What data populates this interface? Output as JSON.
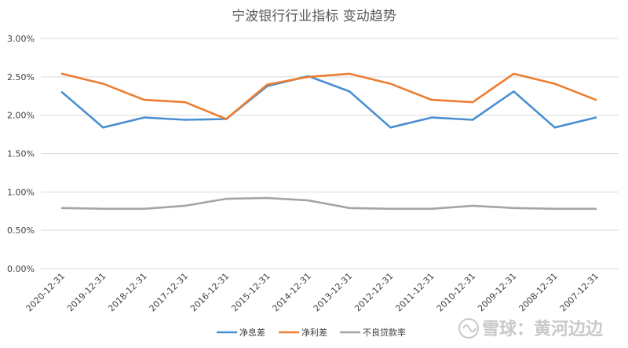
{
  "chart_data": {
    "type": "line",
    "title": "宁波银行行业指标 变动趋势",
    "xlabel": "",
    "ylabel": "",
    "categories": [
      "2020-12-31",
      "2019-12-31",
      "2018-12-31",
      "2017-12-31",
      "2016-12-31",
      "2015-12-31",
      "2014-12-31",
      "2013-12-31",
      "2012-12-31",
      "2011-12-31",
      "2010-12-31",
      "2009-12-31",
      "2008-12-31",
      "2007-12-31"
    ],
    "ylim": [
      0,
      3.0
    ],
    "yticks": [
      "0.00%",
      "0.50%",
      "1.00%",
      "1.50%",
      "2.00%",
      "2.50%",
      "3.00%"
    ],
    "grid": true,
    "legend_position": "bottom",
    "series": [
      {
        "name": "净息差",
        "color": "#4a8fd1",
        "values": [
          2.3,
          1.84,
          1.97,
          1.94,
          1.95,
          2.38,
          2.51,
          2.31,
          1.84,
          1.97,
          1.94,
          2.31,
          1.84,
          1.97
        ]
      },
      {
        "name": "净利差",
        "color": "#ed7d31",
        "values": [
          2.54,
          2.41,
          2.2,
          2.17,
          1.95,
          2.4,
          2.5,
          2.54,
          2.41,
          2.2,
          2.17,
          2.54,
          2.41,
          2.2
        ]
      },
      {
        "name": "不良贷款率",
        "color": "#a5a5a5",
        "values": [
          0.79,
          0.78,
          0.78,
          0.82,
          0.91,
          0.92,
          0.89,
          0.79,
          0.78,
          0.78,
          0.82,
          0.79,
          0.78,
          0.78
        ]
      }
    ]
  },
  "watermark": {
    "text": "雪球：黄河边边"
  }
}
